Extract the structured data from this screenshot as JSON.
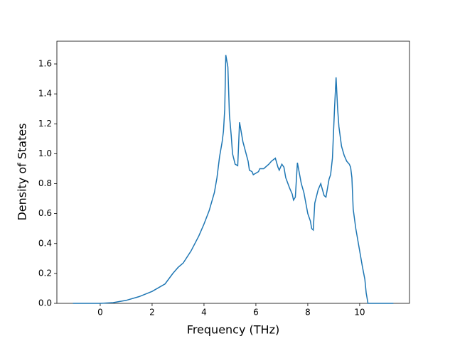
{
  "chart_data": {
    "type": "line",
    "xlabel": "Frequency (THz)",
    "ylabel": "Density of States",
    "x": [
      -1.05,
      0,
      0.5,
      1,
      1.5,
      2,
      2.5,
      2.8,
      3,
      3.2,
      3.5,
      3.8,
      4,
      4.2,
      4.4,
      4.5,
      4.6,
      4.7,
      4.75,
      4.8,
      4.84,
      4.92,
      4.98,
      5.05,
      5.1,
      5.2,
      5.3,
      5.37,
      5.5,
      5.7,
      5.75,
      5.85,
      5.9,
      6,
      6.1,
      6.15,
      6.3,
      6.5,
      6.6,
      6.75,
      6.85,
      6.9,
      7.0,
      7.08,
      7.15,
      7.3,
      7.4,
      7.45,
      7.52,
      7.6,
      7.75,
      7.85,
      8.0,
      8.1,
      8.15,
      8.21,
      8.27,
      8.4,
      8.5,
      8.63,
      8.7,
      8.82,
      8.88,
      8.95,
      9.03,
      9.09,
      9.15,
      9.2,
      9.3,
      9.4,
      9.5,
      9.6,
      9.65,
      9.7,
      9.75,
      9.85,
      10.0,
      10.1,
      10.2,
      10.25,
      10.32,
      11.3
    ],
    "series": [
      {
        "name": "DOS",
        "color": "#1f77b4",
        "values": [
          0,
          0,
          0.005,
          0.02,
          0.045,
          0.08,
          0.13,
          0.2,
          0.24,
          0.27,
          0.35,
          0.45,
          0.53,
          0.62,
          0.74,
          0.84,
          0.98,
          1.08,
          1.15,
          1.3,
          1.66,
          1.58,
          1.26,
          1.12,
          1.0,
          0.93,
          0.92,
          1.21,
          1.08,
          0.95,
          0.89,
          0.88,
          0.86,
          0.87,
          0.88,
          0.9,
          0.9,
          0.93,
          0.95,
          0.97,
          0.91,
          0.89,
          0.93,
          0.91,
          0.84,
          0.77,
          0.73,
          0.69,
          0.71,
          0.94,
          0.8,
          0.74,
          0.6,
          0.55,
          0.5,
          0.49,
          0.67,
          0.76,
          0.8,
          0.72,
          0.71,
          0.83,
          0.86,
          0.97,
          1.3,
          1.51,
          1.3,
          1.18,
          1.05,
          0.99,
          0.95,
          0.93,
          0.91,
          0.84,
          0.63,
          0.5,
          0.35,
          0.25,
          0.16,
          0.07,
          0,
          0
        ]
      }
    ],
    "xlim": [
      -1.67,
      11.92
    ],
    "ylim": [
      0,
      1.752
    ],
    "xticks": [
      0,
      2,
      4,
      6,
      8,
      10
    ],
    "yticks": [
      {
        "value": 0,
        "label": "0.0"
      },
      0.2,
      0.4,
      0.6,
      0.8,
      {
        "value": 1,
        "label": "1.0"
      },
      1.2,
      1.4,
      1.6
    ]
  }
}
